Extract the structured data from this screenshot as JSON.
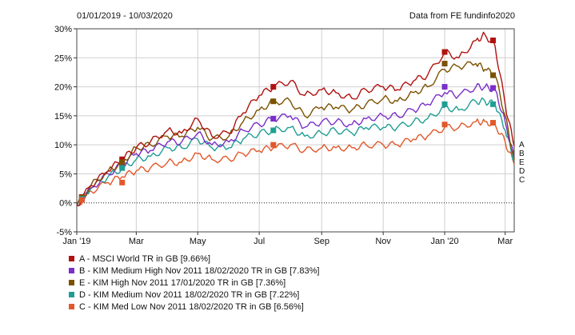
{
  "header": {
    "date_range": "01/01/2019 - 10/03/2020",
    "source": "Data from FE fundinfo2020"
  },
  "legend": [
    {
      "label": "A - MSCI World TR in GB [9.66%]",
      "color": "#b0120f"
    },
    {
      "label": "B - KIM Medium High Nov 2011 18/02/2020 TR in GB [7.83%]",
      "color": "#7b2fc9"
    },
    {
      "label": "E - KIM High Nov 2011 17/01/2020 TR in GB [7.36%]",
      "color": "#7b5200"
    },
    {
      "label": "D - KIM Medium Nov 2011 18/02/2020 TR in GB [7.22%]",
      "color": "#1f9e93"
    },
    {
      "label": "C - KIM Med Low Nov 2011 18/02/2020 TR in GB [6.56%]",
      "color": "#e2582b"
    }
  ],
  "end_labels": [
    "A",
    "B",
    "E",
    "D",
    "C"
  ],
  "chart_data": {
    "type": "line",
    "title": "",
    "xlabel": "",
    "ylabel": "",
    "ylim": [
      -5,
      30
    ],
    "yticks": [
      "-5%",
      "0%",
      "5%",
      "10%",
      "15%",
      "20%",
      "25%",
      "30%"
    ],
    "ytick_values": [
      -5,
      0,
      5,
      10,
      15,
      20,
      25,
      30
    ],
    "xticks": [
      "Jan '19",
      "Mar",
      "May",
      "Jul",
      "Sep",
      "Nov",
      "Jan '20",
      "Mar"
    ],
    "xtick_values": [
      "2019-01-01",
      "2019-03-01",
      "2019-05-01",
      "2019-07-01",
      "2019-09-01",
      "2019-11-01",
      "2020-01-01",
      "2020-03-01"
    ],
    "x_range": [
      "2019-01-01",
      "2020-03-10"
    ],
    "grid": true,
    "zero_line": "dotted",
    "legend_position": "bottom-left",
    "x": [
      "2019-01-01",
      "2019-01-15",
      "2019-02-01",
      "2019-02-15",
      "2019-03-01",
      "2019-03-15",
      "2019-04-01",
      "2019-04-15",
      "2019-05-01",
      "2019-05-15",
      "2019-06-01",
      "2019-06-15",
      "2019-07-01",
      "2019-07-15",
      "2019-08-01",
      "2019-08-15",
      "2019-09-01",
      "2019-09-15",
      "2019-10-01",
      "2019-10-15",
      "2019-11-01",
      "2019-11-15",
      "2019-12-01",
      "2019-12-15",
      "2020-01-01",
      "2020-01-15",
      "2020-02-01",
      "2020-02-10",
      "2020-02-20",
      "2020-03-01",
      "2020-03-10"
    ],
    "series": [
      {
        "name": "A - MSCI World TR in GB [9.66%]",
        "color": "#b0120f",
        "values": [
          -0.5,
          3,
          5.5,
          7.5,
          9.5,
          10.5,
          12.5,
          12,
          14.5,
          11.5,
          12,
          15.5,
          18.5,
          20,
          21,
          18.5,
          19.5,
          19,
          18,
          19.5,
          20,
          19.5,
          21,
          22,
          26,
          25,
          28,
          29,
          27,
          17,
          9.7
        ]
      },
      {
        "name": "B - KIM Medium High Nov 2011 18/02/2020 TR in GB [7.83%]",
        "color": "#7b2fc9",
        "values": [
          -0.5,
          2.5,
          5,
          6.5,
          8.5,
          9,
          10.5,
          10.5,
          12,
          10,
          10.5,
          12.5,
          13.5,
          14.5,
          15,
          13,
          14,
          14,
          13.5,
          14.5,
          15,
          15,
          16,
          17,
          19,
          18.5,
          20,
          20,
          19.5,
          14,
          7.8
        ]
      },
      {
        "name": "E - KIM High Nov 2011 17/01/2020 TR in GB [7.36%]",
        "color": "#7b5200",
        "values": [
          -0.5,
          3,
          5.5,
          7,
          9.5,
          10,
          11.5,
          11.5,
          13,
          11,
          11.5,
          14,
          16,
          17.5,
          17.5,
          15,
          16.5,
          16.5,
          16,
          17,
          18,
          17.5,
          19,
          20,
          23,
          23.5,
          24,
          23,
          22,
          15,
          7.4
        ]
      },
      {
        "name": "D - KIM Medium Nov 2011 18/02/2020 TR in GB [7.22%]",
        "color": "#1f9e93",
        "values": [
          -0.5,
          2.5,
          4.5,
          6,
          7.5,
          8,
          9.5,
          9.5,
          11,
          9.5,
          9.5,
          11,
          12,
          12.5,
          13,
          11.5,
          12,
          12.5,
          12,
          13,
          13,
          13,
          14,
          14.5,
          16.5,
          16,
          17.5,
          17.5,
          17,
          12.5,
          7.2
        ]
      },
      {
        "name": "C - KIM Med Low Nov 2011 18/02/2020 TR in GB [6.56%]",
        "color": "#e2582b",
        "values": [
          -0.5,
          2,
          3.5,
          4.5,
          5.5,
          6,
          7,
          7,
          8.5,
          7.5,
          7.5,
          8.5,
          9,
          9.5,
          10,
          9,
          9.5,
          9.5,
          9.5,
          10,
          10,
          10,
          11,
          11.5,
          13,
          13,
          14,
          14,
          13.5,
          10.5,
          6.6
        ]
      }
    ],
    "markers": [
      {
        "series": 0,
        "x": "2019-01-06",
        "y": 1.0
      },
      {
        "series": 0,
        "x": "2019-02-15",
        "y": 7.5
      },
      {
        "series": 0,
        "x": "2019-07-15",
        "y": 20.0
      },
      {
        "series": 0,
        "x": "2020-01-01",
        "y": 26.0
      },
      {
        "series": 0,
        "x": "2020-02-18",
        "y": 28.0
      },
      {
        "series": 1,
        "x": "2019-01-06",
        "y": 0.8
      },
      {
        "series": 1,
        "x": "2019-02-15",
        "y": 6.5
      },
      {
        "series": 1,
        "x": "2019-07-15",
        "y": 14.5
      },
      {
        "series": 1,
        "x": "2020-01-01",
        "y": 20.0
      },
      {
        "series": 1,
        "x": "2020-02-18",
        "y": 19.8
      },
      {
        "series": 2,
        "x": "2019-01-06",
        "y": 0.9
      },
      {
        "series": 2,
        "x": "2019-02-15",
        "y": 7.0
      },
      {
        "series": 2,
        "x": "2019-07-15",
        "y": 17.5
      },
      {
        "series": 2,
        "x": "2020-01-01",
        "y": 24.0
      },
      {
        "series": 2,
        "x": "2020-02-18",
        "y": 22.0
      },
      {
        "series": 3,
        "x": "2019-01-06",
        "y": 0.7
      },
      {
        "series": 3,
        "x": "2019-02-15",
        "y": 6.0
      },
      {
        "series": 3,
        "x": "2019-07-15",
        "y": 12.5
      },
      {
        "series": 3,
        "x": "2020-01-01",
        "y": 17.0
      },
      {
        "series": 3,
        "x": "2020-02-18",
        "y": 17.0
      },
      {
        "series": 4,
        "x": "2019-01-06",
        "y": 0.5
      },
      {
        "series": 4,
        "x": "2019-02-15",
        "y": 3.5
      },
      {
        "series": 4,
        "x": "2019-07-15",
        "y": 10.0
      },
      {
        "series": 4,
        "x": "2020-01-01",
        "y": 13.5
      },
      {
        "series": 4,
        "x": "2020-02-18",
        "y": 13.8
      }
    ]
  }
}
